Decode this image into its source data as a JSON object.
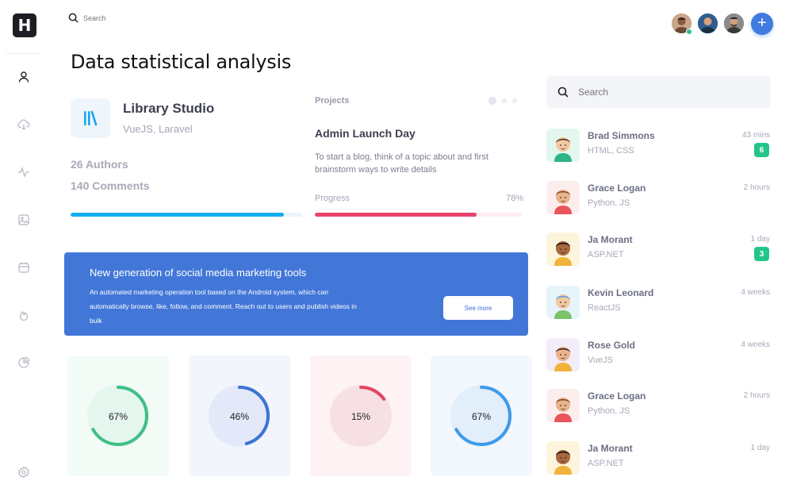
{
  "app": {
    "logo_letter": "H"
  },
  "topbar": {
    "search_placeholder": "Search"
  },
  "page": {
    "title": "Data statistical analysis"
  },
  "library": {
    "title": "Library Studio",
    "subtitle": "VueJS, Laravel",
    "authors": "26 Authors",
    "comments": "140 Comments",
    "progress": 0.92
  },
  "projects": {
    "label": "Projects",
    "title": "Admin Launch Day",
    "description": "To start a blog, think of a topic about and first brainstorm ways to write details",
    "progress_label": "Progress",
    "progress_value": "78%",
    "progress": 0.78
  },
  "banner": {
    "title": "New generation of social media marketing tools",
    "text": "An automated marketing operation tool based on the Android system, which can automatically browse, like, follow, and comment. Reach out to users and publish videos in bulk",
    "button": "See more"
  },
  "stats": [
    {
      "label": "67%",
      "value": 0.67,
      "color": "#3fbf85",
      "bg": "#f3fbf7",
      "inner": "#e5f6ee"
    },
    {
      "label": "46%",
      "value": 0.46,
      "color": "#3c73d6",
      "bg": "#f2f5fc",
      "inner": "#e3e9f8"
    },
    {
      "label": "15%",
      "value": 0.15,
      "color": "#e2465f",
      "bg": "#fdf3f4",
      "inner": "#f6e0e3"
    },
    {
      "label": "67%",
      "value": 0.67,
      "color": "#3d9be8",
      "bg": "#f2f8fd",
      "inner": "#e2eefa"
    }
  ],
  "right_panel": {
    "search_placeholder": "Search",
    "users": [
      {
        "name": "Brad Simmons",
        "skills": "HTML, CSS",
        "time": "43 mins",
        "badge": "6",
        "avatar_bg": "#e3f7ef"
      },
      {
        "name": "Grace Logan",
        "skills": "Python, JS",
        "time": "2 hours",
        "badge": "",
        "avatar_bg": "#fdeeee"
      },
      {
        "name": "Ja Morant",
        "skills": "ASP.NET",
        "time": "1 day",
        "badge": "3",
        "avatar_bg": "#fdf4dc"
      },
      {
        "name": "Kevin Leonard",
        "skills": "ReactJS",
        "time": "4 weeks",
        "badge": "",
        "avatar_bg": "#e8f4fb"
      },
      {
        "name": "Rose Gold",
        "skills": "VueJS",
        "time": "4 weeks",
        "badge": "",
        "avatar_bg": "#f3ecf9"
      },
      {
        "name": "Grace Logan",
        "skills": "Python, JS",
        "time": "2 hours",
        "badge": "",
        "avatar_bg": "#fdeeee"
      },
      {
        "name": "Ja Morant",
        "skills": "ASP.NET",
        "time": "1 day",
        "badge": "",
        "avatar_bg": "#fdf4dc"
      }
    ]
  },
  "icons": {
    "sidebar": [
      "user-icon",
      "cloud-download-icon",
      "activity-icon",
      "image-icon",
      "calendar-icon",
      "fire-icon",
      "pie-chart-icon",
      "settings-icon"
    ]
  }
}
